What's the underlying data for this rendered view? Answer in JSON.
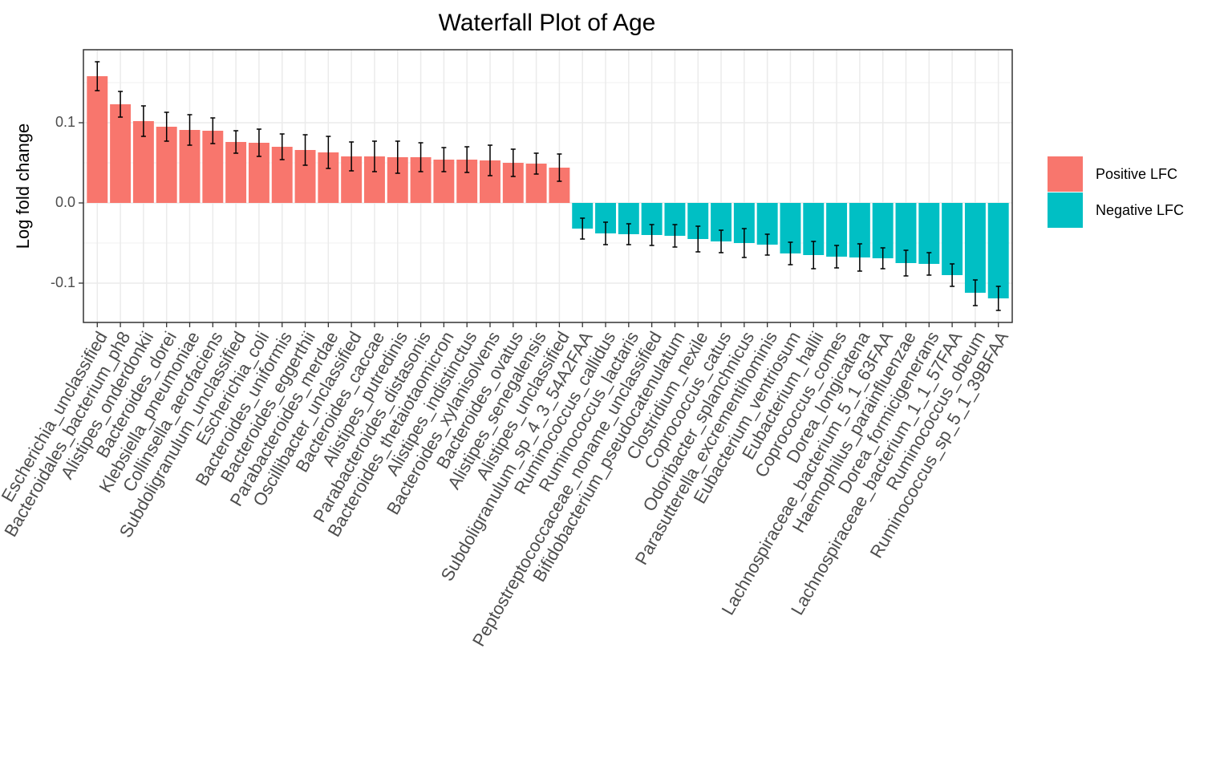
{
  "chart_data": {
    "type": "bar",
    "title": "Waterfall Plot of Age",
    "y_label": "Log fold change",
    "categories": [
      "Escherichia_unclassified",
      "Bacteroidales_bacterium_ph8",
      "Alistipes_onderdonkii",
      "Bacteroides_dorei",
      "Klebsiella_pneumoniae",
      "Collinsella_aerofaciens",
      "Subdoligranulum_unclassified",
      "Escherichia_coli",
      "Bacteroides_uniformis",
      "Bacteroides_eggerthii",
      "Parabacteroides_merdae",
      "Oscillibacter_unclassified",
      "Bacteroides_caccae",
      "Alistipes_putredinis",
      "Parabacteroides_distasonis",
      "Bacteroides_thetaiotaomicron",
      "Alistipes_indistinctus",
      "Bacteroides_xylanisolvens",
      "Bacteroides_ovatus",
      "Alistipes_senegalensis",
      "Alistipes_unclassified",
      "Subdoligranulum_sp_4_3_54A2FAA",
      "Ruminococcus_callidus",
      "Ruminococcus_lactaris",
      "Peptostreptococcaceae_noname_unclassified",
      "Bifidobacterium_pseudocatenulatum",
      "Clostridium_nexile",
      "Coprococcus_catus",
      "Odoribacter_splanchnicus",
      "Parasutterella_excrementihominis",
      "Eubacterium_ventriosum",
      "Eubacterium_hallii",
      "Coprococcus_comes",
      "Dorea_longicatena",
      "Lachnospiraceae_bacterium_5_1_63FAA",
      "Haemophilus_parainfluenzae",
      "Dorea_formicigenerans",
      "Lachnospiraceae_bacterium_1_1_57FAA",
      "Ruminococcus_obeum",
      "Ruminococcus_sp_5_1_39BFAA"
    ],
    "series": [
      {
        "name": "Positive LFC",
        "color": "#f8766d",
        "values": [
          0.158,
          0.123,
          0.102,
          0.095,
          0.091,
          0.09,
          0.076,
          0.075,
          0.07,
          0.066,
          0.063,
          0.058,
          0.058,
          0.057,
          0.057,
          0.054,
          0.054,
          0.053,
          0.05,
          0.049,
          0.044,
          null,
          null,
          null,
          null,
          null,
          null,
          null,
          null,
          null,
          null,
          null,
          null,
          null,
          null,
          null,
          null,
          null,
          null,
          null
        ],
        "errors": [
          0.018,
          0.016,
          0.019,
          0.018,
          0.019,
          0.016,
          0.014,
          0.017,
          0.016,
          0.019,
          0.02,
          0.018,
          0.019,
          0.02,
          0.018,
          0.015,
          0.016,
          0.019,
          0.017,
          0.013,
          0.017,
          null,
          null,
          null,
          null,
          null,
          null,
          null,
          null,
          null,
          null,
          null,
          null,
          null,
          null,
          null,
          null,
          null,
          null,
          null
        ]
      },
      {
        "name": "Negative LFC",
        "color": "#00bfc4",
        "values": [
          null,
          null,
          null,
          null,
          null,
          null,
          null,
          null,
          null,
          null,
          null,
          null,
          null,
          null,
          null,
          null,
          null,
          null,
          null,
          null,
          null,
          -0.032,
          -0.038,
          -0.039,
          -0.04,
          -0.041,
          -0.045,
          -0.048,
          -0.05,
          -0.052,
          -0.063,
          -0.065,
          -0.067,
          -0.068,
          -0.069,
          -0.075,
          -0.076,
          -0.09,
          -0.112,
          -0.119
        ],
        "errors": [
          null,
          null,
          null,
          null,
          null,
          null,
          null,
          null,
          null,
          null,
          null,
          null,
          null,
          null,
          null,
          null,
          null,
          null,
          null,
          null,
          null,
          0.013,
          0.014,
          0.013,
          0.013,
          0.014,
          0.016,
          0.014,
          0.018,
          0.013,
          0.014,
          0.017,
          0.014,
          0.017,
          0.013,
          0.016,
          0.014,
          0.014,
          0.016,
          0.015
        ]
      }
    ],
    "ylim": [
      -0.149,
      0.191
    ],
    "yticks": [
      -0.1,
      {
        "value": 0,
        "label": "0.0"
      },
      0.1
    ],
    "minor_yticks": [
      -0.05,
      0.05,
      0.15
    ],
    "grid": true,
    "legend": "right"
  }
}
